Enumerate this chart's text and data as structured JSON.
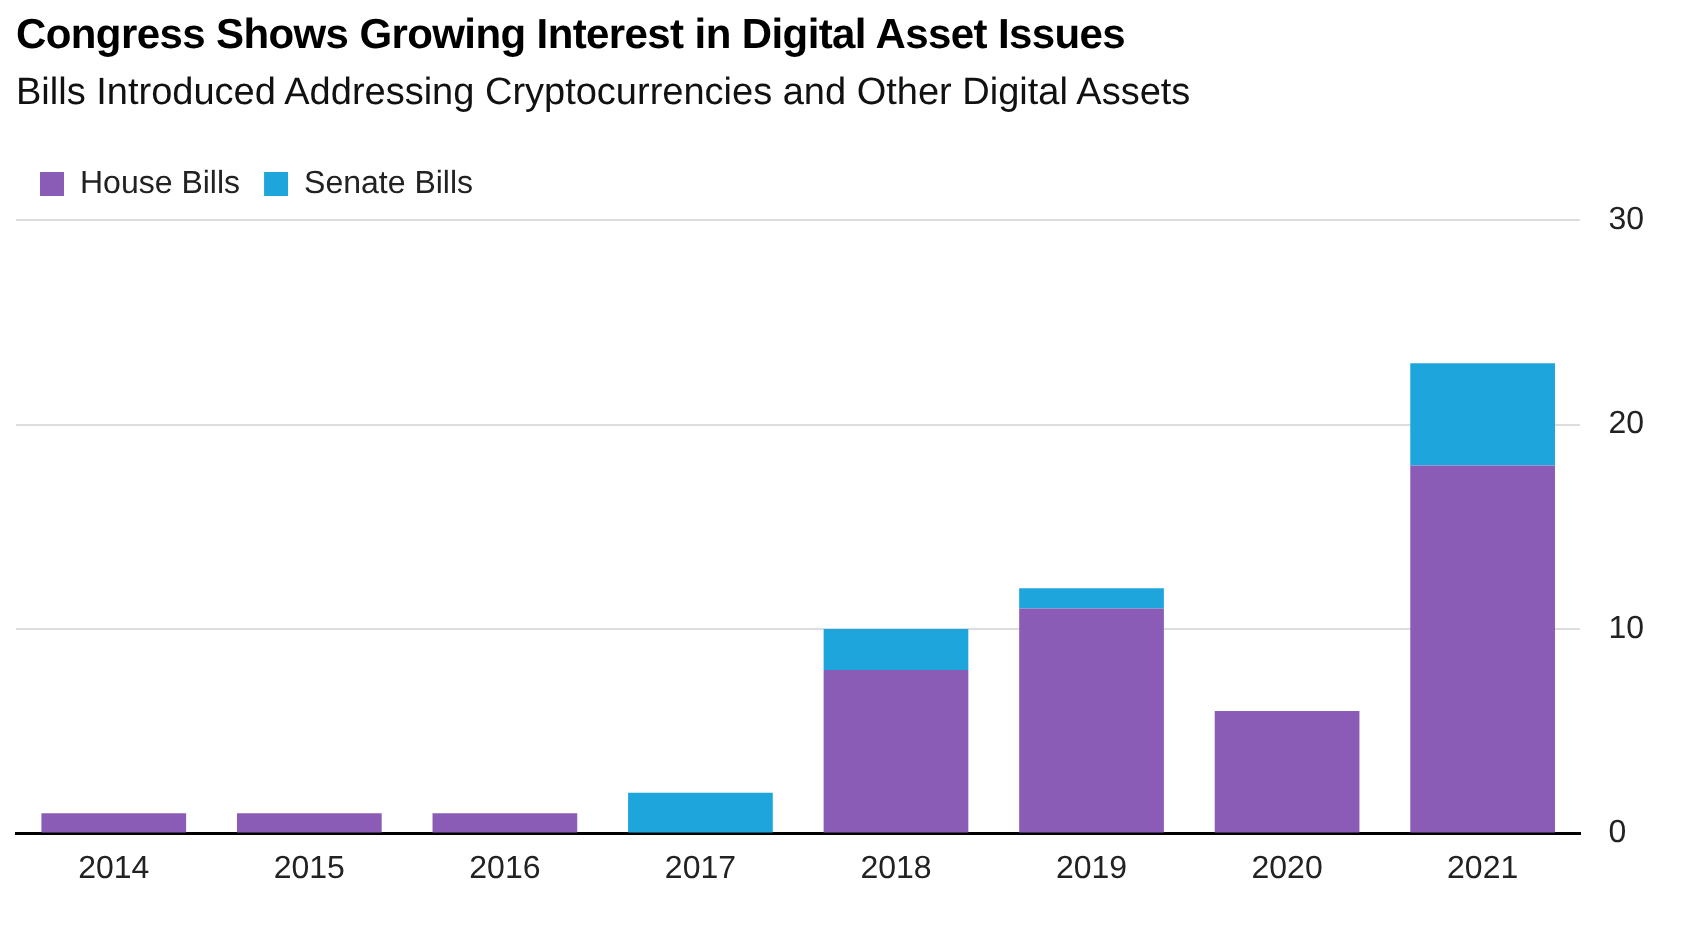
{
  "chart_data": {
    "type": "bar",
    "title": "Congress Shows Growing Interest in Digital Asset Issues",
    "subtitle": "Bills Introduced Addressing Cryptocurrencies and Other Digital Assets",
    "categories": [
      "2014",
      "2015",
      "2016",
      "2017",
      "2018",
      "2019",
      "2020",
      "2021"
    ],
    "series": [
      {
        "name": "House Bills",
        "color": "#8b5cb6",
        "values": [
          1,
          1,
          1,
          0,
          8,
          11,
          6,
          18
        ]
      },
      {
        "name": "Senate Bills",
        "color": "#1ea5dc",
        "values": [
          0,
          0,
          0,
          2,
          2,
          1,
          0,
          5
        ]
      }
    ],
    "stacked": true,
    "ylim": [
      0,
      30
    ],
    "yticks": [
      0,
      10,
      20,
      30
    ],
    "grid": "y",
    "legend": "top left"
  }
}
